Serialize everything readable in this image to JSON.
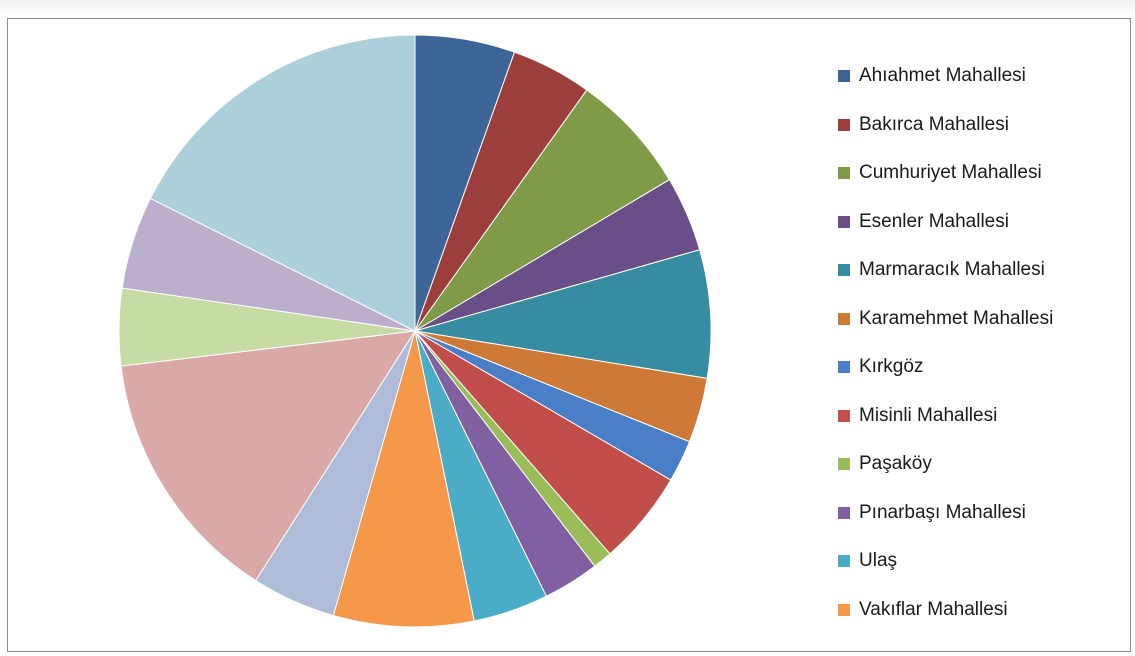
{
  "chart_data": {
    "type": "pie",
    "title": "",
    "legend_position": "right",
    "start_angle": "top",
    "direction": "clockwise",
    "slices": [
      {
        "label": "Ahıahmet Mahallesi",
        "value": 5.7,
        "color": "#3e6598"
      },
      {
        "label": "Bakırca Mahallesi",
        "value": 4.6,
        "color": "#9c3f3c"
      },
      {
        "label": "Cumhuriyet Mahallesi",
        "value": 6.9,
        "color": "#7f9b47"
      },
      {
        "label": "Esenler Mahallesi",
        "value": 4.3,
        "color": "#6a4e88"
      },
      {
        "label": "Marmaracık Mahallesi",
        "value": 7.3,
        "color": "#388ca1"
      },
      {
        "label": "Karamehmet Mahallesi",
        "value": 3.7,
        "color": "#ce7a36"
      },
      {
        "label": "Kırkgöz",
        "value": 2.4,
        "color": "#4a7ec6"
      },
      {
        "label": "Misinli Mahallesi",
        "value": 5.4,
        "color": "#c24e4b"
      },
      {
        "label": "Paşaköy",
        "value": 1.1,
        "color": "#9bbd59"
      },
      {
        "label": "Pınarbaşı Mahallesi",
        "value": 3.2,
        "color": "#8060a0"
      },
      {
        "label": "Ulaş",
        "value": 4.3,
        "color": "#4aacc6"
      },
      {
        "label": "Vakıflar Mahallesi",
        "value": 8.0,
        "color": "#f5984a"
      },
      {
        "label": "",
        "value": 4.8,
        "color": "#aebcd9"
      },
      {
        "label": "",
        "value": 14.7,
        "color": "#d9a8a7"
      },
      {
        "label": "",
        "value": 4.4,
        "color": "#c7dba4"
      },
      {
        "label": "",
        "value": 5.3,
        "color": "#bcafce"
      },
      {
        "label": "",
        "value": 18.4,
        "color": "#abd0dc"
      }
    ]
  }
}
